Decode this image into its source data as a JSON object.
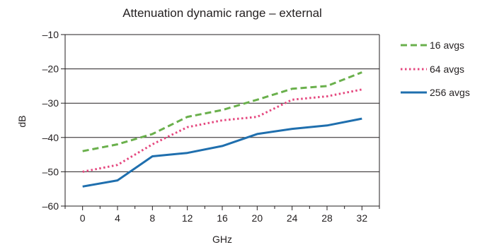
{
  "chart_data": {
    "type": "line",
    "title": "Attenuation dynamic range – external",
    "xlabel": "GHz",
    "ylabel": "dB",
    "x": [
      0,
      4,
      8,
      12,
      16,
      20,
      24,
      28,
      32
    ],
    "xlim": [
      -2,
      34
    ],
    "ylim": [
      -60,
      -10
    ],
    "yticks": [
      -10,
      -20,
      -30,
      -40,
      -50,
      -60
    ],
    "yticklabels": [
      "–10",
      "–20",
      "–30",
      "–40",
      "–50",
      "–60"
    ],
    "grid": true,
    "legend_position": "right",
    "series": [
      {
        "name": "16 avgs",
        "color": "#6ab04c",
        "style": "dashed",
        "values": [
          -44,
          -42,
          -39,
          -34,
          -32,
          -29,
          -25.8,
          -25,
          -21
        ]
      },
      {
        "name": "64 avgs",
        "color": "#e5487f",
        "style": "dotted",
        "values": [
          -50,
          -48,
          -42,
          -37,
          -35,
          -34,
          -29,
          -28,
          -26
        ]
      },
      {
        "name": "256 avgs",
        "color": "#1f6fae",
        "style": "solid",
        "values": [
          -54.3,
          -52.5,
          -45.5,
          -44.5,
          -42.5,
          -39,
          -37.5,
          -36.5,
          -34.5
        ]
      }
    ]
  }
}
